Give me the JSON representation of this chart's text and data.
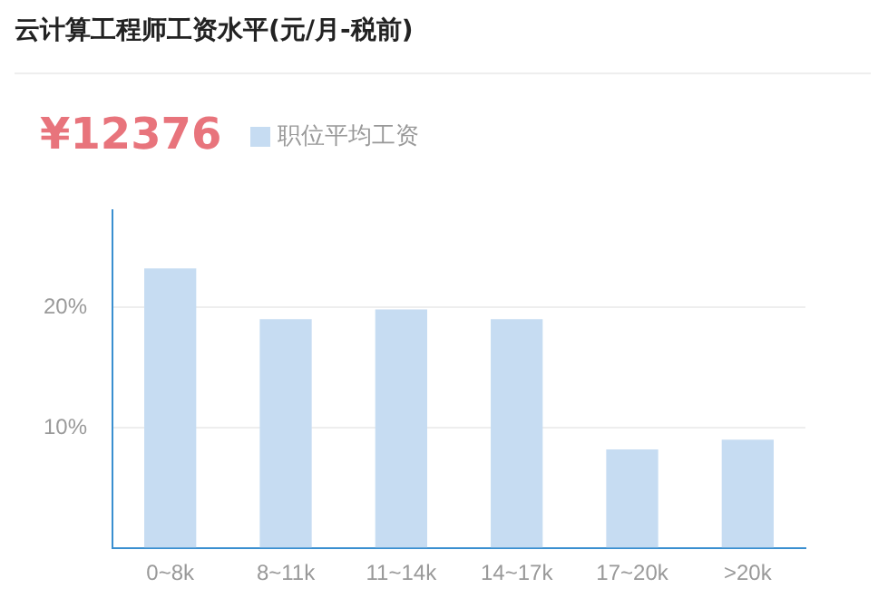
{
  "chart_data": {
    "type": "bar",
    "title": "云计算工程师工资水平(元/月-税前)",
    "annotations": [
      "¥12376"
    ],
    "categories": [
      "0~8k",
      "8~11k",
      "11~14k",
      "14~17k",
      "17~20k",
      ">20k"
    ],
    "series": [
      {
        "name": "职位平均工资",
        "color": "#c6dcf2",
        "values": [
          23.2,
          19.0,
          19.8,
          19.0,
          8.2,
          9.0
        ]
      }
    ],
    "ylim": [
      0,
      28
    ],
    "yticks": [
      {
        "value": 0,
        "label": null
      },
      {
        "value": 10,
        "label": "10%"
      },
      {
        "value": 20,
        "label": "20%"
      }
    ],
    "grid": "y",
    "legend": "top left"
  }
}
